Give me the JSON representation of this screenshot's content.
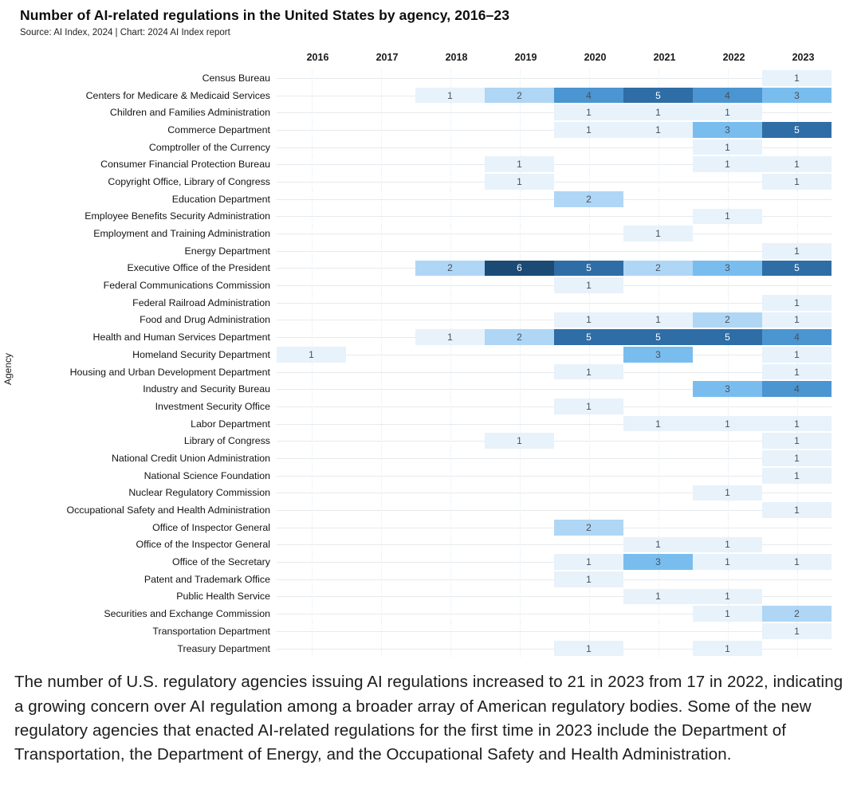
{
  "chart_data": {
    "type": "heatmap",
    "title": "Number of AI-related regulations in the United States by agency, 2016–23",
    "source": "Source: AI Index, 2024 | Chart: 2024 AI Index report",
    "ylabel": "Agency",
    "years": [
      "2016",
      "2017",
      "2018",
      "2019",
      "2020",
      "2021",
      "2022",
      "2023"
    ],
    "palette": {
      "1": "#e8f2fb",
      "2": "#afd6f5",
      "3": "#79bdef",
      "4": "#4b95d1",
      "5": "#2e6da6",
      "6": "#1b4a74"
    },
    "white_text_from_value": 5,
    "rows": [
      {
        "agency": "Census Bureau",
        "values": [
          null,
          null,
          null,
          null,
          null,
          null,
          null,
          1
        ]
      },
      {
        "agency": "Centers for Medicare & Medicaid Services",
        "values": [
          null,
          null,
          1,
          2,
          4,
          5,
          4,
          3
        ]
      },
      {
        "agency": "Children and Families Administration",
        "values": [
          null,
          null,
          null,
          null,
          1,
          1,
          1,
          null
        ]
      },
      {
        "agency": "Commerce Department",
        "values": [
          null,
          null,
          null,
          null,
          1,
          1,
          3,
          5
        ]
      },
      {
        "agency": "Comptroller of the Currency",
        "values": [
          null,
          null,
          null,
          null,
          null,
          null,
          1,
          null
        ]
      },
      {
        "agency": "Consumer Financial Protection Bureau",
        "values": [
          null,
          null,
          null,
          1,
          null,
          null,
          1,
          1
        ]
      },
      {
        "agency": "Copyright Office, Library of Congress",
        "values": [
          null,
          null,
          null,
          1,
          null,
          null,
          null,
          1
        ]
      },
      {
        "agency": "Education Department",
        "values": [
          null,
          null,
          null,
          null,
          2,
          null,
          null,
          null
        ]
      },
      {
        "agency": "Employee Benefits Security Administration",
        "values": [
          null,
          null,
          null,
          null,
          null,
          null,
          1,
          null
        ]
      },
      {
        "agency": "Employment and Training Administration",
        "values": [
          null,
          null,
          null,
          null,
          null,
          1,
          null,
          null
        ]
      },
      {
        "agency": "Energy Department",
        "values": [
          null,
          null,
          null,
          null,
          null,
          null,
          null,
          1
        ]
      },
      {
        "agency": "Executive Office of the President",
        "values": [
          null,
          null,
          2,
          6,
          5,
          2,
          3,
          5
        ]
      },
      {
        "agency": "Federal Communications Commission",
        "values": [
          null,
          null,
          null,
          null,
          1,
          null,
          null,
          null
        ]
      },
      {
        "agency": "Federal Railroad Administration",
        "values": [
          null,
          null,
          null,
          null,
          null,
          null,
          null,
          1
        ]
      },
      {
        "agency": "Food and Drug Administration",
        "values": [
          null,
          null,
          null,
          null,
          1,
          1,
          2,
          1
        ]
      },
      {
        "agency": "Health and Human Services Department",
        "values": [
          null,
          null,
          1,
          2,
          5,
          5,
          5,
          4
        ]
      },
      {
        "agency": "Homeland Security Department",
        "values": [
          1,
          null,
          null,
          null,
          null,
          3,
          null,
          1
        ]
      },
      {
        "agency": "Housing and Urban Development Department",
        "values": [
          null,
          null,
          null,
          null,
          1,
          null,
          null,
          1
        ]
      },
      {
        "agency": "Industry and Security Bureau",
        "values": [
          null,
          null,
          null,
          null,
          null,
          null,
          3,
          4
        ]
      },
      {
        "agency": "Investment Security Office",
        "values": [
          null,
          null,
          null,
          null,
          1,
          null,
          null,
          null
        ]
      },
      {
        "agency": "Labor Department",
        "values": [
          null,
          null,
          null,
          null,
          null,
          1,
          1,
          1
        ]
      },
      {
        "agency": "Library of Congress",
        "values": [
          null,
          null,
          null,
          1,
          null,
          null,
          null,
          1
        ]
      },
      {
        "agency": "National Credit Union Administration",
        "values": [
          null,
          null,
          null,
          null,
          null,
          null,
          null,
          1
        ]
      },
      {
        "agency": "National Science Foundation",
        "values": [
          null,
          null,
          null,
          null,
          null,
          null,
          null,
          1
        ]
      },
      {
        "agency": "Nuclear Regulatory Commission",
        "values": [
          null,
          null,
          null,
          null,
          null,
          null,
          1,
          null
        ]
      },
      {
        "agency": "Occupational Safety and Health Administration",
        "values": [
          null,
          null,
          null,
          null,
          null,
          null,
          null,
          1
        ]
      },
      {
        "agency": "Office of Inspector General",
        "values": [
          null,
          null,
          null,
          null,
          2,
          null,
          null,
          null
        ]
      },
      {
        "agency": "Office of the Inspector General",
        "values": [
          null,
          null,
          null,
          null,
          null,
          1,
          1,
          null
        ]
      },
      {
        "agency": "Office of the Secretary",
        "values": [
          null,
          null,
          null,
          null,
          1,
          3,
          1,
          1
        ]
      },
      {
        "agency": "Patent and Trademark Office",
        "values": [
          null,
          null,
          null,
          null,
          1,
          null,
          null,
          null
        ]
      },
      {
        "agency": "Public Health Service",
        "values": [
          null,
          null,
          null,
          null,
          null,
          1,
          1,
          null
        ]
      },
      {
        "agency": "Securities and Exchange Commission",
        "values": [
          null,
          null,
          null,
          null,
          null,
          null,
          1,
          2
        ]
      },
      {
        "agency": "Transportation Department",
        "values": [
          null,
          null,
          null,
          null,
          null,
          null,
          null,
          1
        ]
      },
      {
        "agency": "Treasury Department",
        "values": [
          null,
          null,
          null,
          null,
          1,
          null,
          1,
          null
        ]
      }
    ]
  },
  "caption": "The number of U.S. regulatory agencies issuing AI regulations increased to 21 in 2023 from 17 in 2022, indicating a growing concern over AI regulation among a broader array of American regulatory bodies. Some of the new regulatory agencies that enacted AI-related regulations for the first time in 2023 include the Department of Transportation, the Department of Energy, and the Occupational Safety and Health Administration."
}
